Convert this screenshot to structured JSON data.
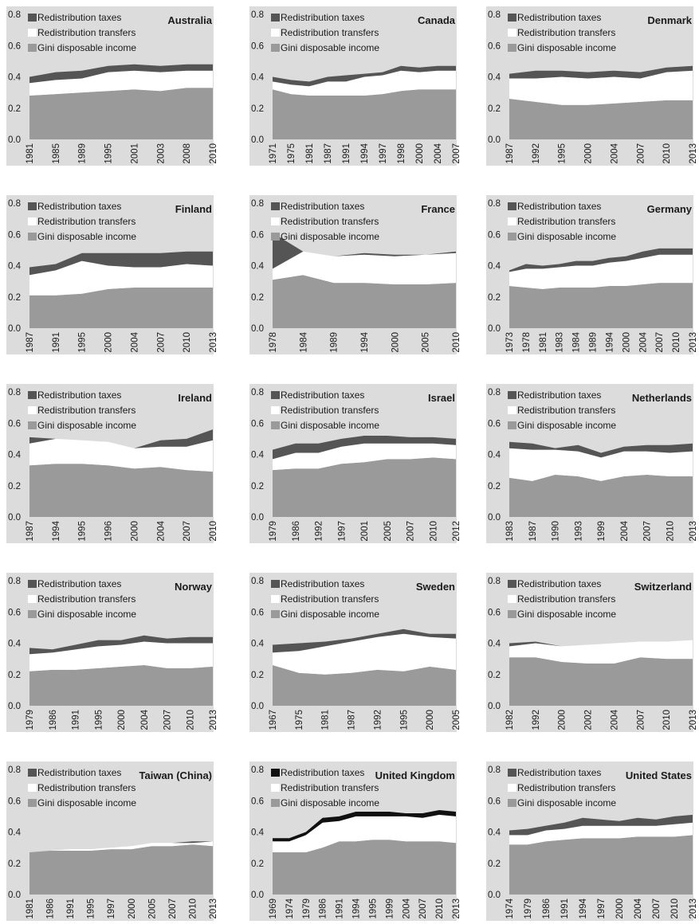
{
  "legend": {
    "taxes": "Redistribution taxes",
    "transfers": "Redistribution transfers",
    "gini": "Gini disposable income"
  },
  "colors": {
    "taxes": "#555555",
    "transfers": "#ffffff",
    "gini": "#9a9a9a",
    "background": "#dcdcdc",
    "uk_taxes": "#111111"
  },
  "y_ticks": [
    "0.0",
    "0.2",
    "0.4",
    "0.6",
    "0.8"
  ],
  "chart_data": [
    {
      "type": "area",
      "title": "Australia",
      "ylim": [
        0,
        0.8
      ],
      "x": [
        "1981",
        "1985",
        "1989",
        "1995",
        "2001",
        "2003",
        "2008",
        "2010"
      ],
      "series": [
        {
          "name": "Gini disposable income",
          "values": [
            0.28,
            0.29,
            0.3,
            0.31,
            0.32,
            0.31,
            0.33,
            0.33
          ]
        },
        {
          "name": "Redistribution transfers",
          "values": [
            0.08,
            0.09,
            0.09,
            0.12,
            0.12,
            0.12,
            0.11,
            0.11
          ]
        },
        {
          "name": "Redistribution taxes",
          "values": [
            0.04,
            0.05,
            0.05,
            0.04,
            0.04,
            0.04,
            0.04,
            0.04
          ]
        }
      ]
    },
    {
      "type": "area",
      "title": "Canada",
      "ylim": [
        0,
        0.8
      ],
      "x": [
        "1971",
        "1975",
        "1981",
        "1987",
        "1991",
        "1994",
        "1997",
        "1998",
        "2000",
        "2004",
        "2007"
      ],
      "series": [
        {
          "name": "Gini disposable income",
          "values": [
            0.32,
            0.29,
            0.28,
            0.28,
            0.28,
            0.28,
            0.29,
            0.31,
            0.32,
            0.32,
            0.32
          ]
        },
        {
          "name": "Redistribution transfers",
          "values": [
            0.05,
            0.06,
            0.06,
            0.09,
            0.09,
            0.12,
            0.12,
            0.13,
            0.11,
            0.12,
            0.12
          ]
        },
        {
          "name": "Redistribution taxes",
          "values": [
            0.03,
            0.03,
            0.03,
            0.03,
            0.04,
            0.02,
            0.02,
            0.03,
            0.03,
            0.03,
            0.03
          ]
        }
      ]
    },
    {
      "type": "area",
      "title": "Denmark",
      "ylim": [
        0,
        0.8
      ],
      "x": [
        "1987",
        "1992",
        "1995",
        "2000",
        "2004",
        "2007",
        "2010",
        "2013"
      ],
      "series": [
        {
          "name": "Gini disposable income",
          "values": [
            0.26,
            0.24,
            0.22,
            0.22,
            0.23,
            0.24,
            0.25,
            0.25
          ]
        },
        {
          "name": "Redistribution transfers",
          "values": [
            0.13,
            0.15,
            0.18,
            0.17,
            0.17,
            0.15,
            0.18,
            0.19
          ]
        },
        {
          "name": "Redistribution taxes",
          "values": [
            0.03,
            0.05,
            0.04,
            0.04,
            0.04,
            0.04,
            0.03,
            0.03
          ]
        }
      ]
    },
    {
      "type": "area",
      "title": "Finland",
      "ylim": [
        0,
        0.8
      ],
      "x": [
        "1987",
        "1991",
        "1995",
        "2000",
        "2004",
        "2007",
        "2010",
        "2013"
      ],
      "series": [
        {
          "name": "Gini disposable income",
          "values": [
            0.21,
            0.21,
            0.22,
            0.25,
            0.26,
            0.26,
            0.26,
            0.26
          ]
        },
        {
          "name": "Redistribution transfers",
          "values": [
            0.13,
            0.16,
            0.21,
            0.15,
            0.13,
            0.13,
            0.15,
            0.14
          ]
        },
        {
          "name": "Redistribution taxes",
          "values": [
            0.05,
            0.04,
            0.05,
            0.08,
            0.09,
            0.09,
            0.08,
            0.09
          ]
        }
      ]
    },
    {
      "type": "area",
      "title": "France",
      "ylim": [
        0,
        0.8
      ],
      "x": [
        "1978",
        "1984",
        "1989",
        "1994",
        "2000",
        "2005",
        "2010"
      ],
      "series": [
        {
          "name": "Gini disposable income",
          "values": [
            0.31,
            0.34,
            0.29,
            0.29,
            0.28,
            0.28,
            0.29
          ]
        },
        {
          "name": "Redistribution transfers",
          "values": [
            0.07,
            0.15,
            0.17,
            0.18,
            0.18,
            0.19,
            0.19
          ]
        },
        {
          "name": "Redistribution taxes",
          "values": [
            0.23,
            0.0,
            0.0,
            0.01,
            0.01,
            0.0,
            0.01
          ]
        }
      ]
    },
    {
      "type": "area",
      "title": "Germany",
      "ylim": [
        0,
        0.8
      ],
      "x": [
        "1973",
        "1978",
        "1981",
        "1983",
        "1984",
        "1989",
        "1994",
        "2000",
        "2004",
        "2007",
        "2010",
        "2013"
      ],
      "series": [
        {
          "name": "Gini disposable income",
          "values": [
            0.27,
            0.26,
            0.25,
            0.26,
            0.26,
            0.26,
            0.27,
            0.27,
            0.28,
            0.29,
            0.29,
            0.29
          ]
        },
        {
          "name": "Redistribution transfers",
          "values": [
            0.09,
            0.12,
            0.13,
            0.13,
            0.14,
            0.14,
            0.15,
            0.16,
            0.17,
            0.18,
            0.18,
            0.18
          ]
        },
        {
          "name": "Redistribution taxes",
          "values": [
            0.01,
            0.03,
            0.02,
            0.02,
            0.03,
            0.03,
            0.03,
            0.03,
            0.04,
            0.04,
            0.04,
            0.04
          ]
        }
      ]
    },
    {
      "type": "area",
      "title": "Ireland",
      "ylim": [
        0,
        0.8
      ],
      "x": [
        "1987",
        "1994",
        "1995",
        "1996",
        "2000",
        "2004",
        "2007",
        "2010"
      ],
      "series": [
        {
          "name": "Gini disposable income",
          "values": [
            0.33,
            0.34,
            0.34,
            0.33,
            0.31,
            0.32,
            0.3,
            0.29
          ]
        },
        {
          "name": "Redistribution transfers",
          "values": [
            0.14,
            0.16,
            0.15,
            0.15,
            0.13,
            0.13,
            0.15,
            0.2
          ]
        },
        {
          "name": "Redistribution taxes",
          "values": [
            0.04,
            0.0,
            0.0,
            0.0,
            0.0,
            0.04,
            0.05,
            0.07
          ]
        }
      ]
    },
    {
      "type": "area",
      "title": "Israel",
      "ylim": [
        0,
        0.8
      ],
      "x": [
        "1979",
        "1986",
        "1992",
        "1997",
        "2001",
        "2005",
        "2007",
        "2010",
        "2012"
      ],
      "series": [
        {
          "name": "Gini disposable income",
          "values": [
            0.3,
            0.31,
            0.31,
            0.34,
            0.35,
            0.37,
            0.37,
            0.38,
            0.37
          ]
        },
        {
          "name": "Redistribution transfers",
          "values": [
            0.07,
            0.1,
            0.1,
            0.11,
            0.12,
            0.1,
            0.1,
            0.09,
            0.09
          ]
        },
        {
          "name": "Redistribution taxes",
          "values": [
            0.06,
            0.06,
            0.06,
            0.05,
            0.05,
            0.05,
            0.04,
            0.04,
            0.04
          ]
        }
      ]
    },
    {
      "type": "area",
      "title": "Netherlands",
      "ylim": [
        0,
        0.8
      ],
      "x": [
        "1983",
        "1987",
        "1990",
        "1993",
        "1999",
        "2004",
        "2007",
        "2010",
        "2013"
      ],
      "series": [
        {
          "name": "Gini disposable income",
          "values": [
            0.25,
            0.23,
            0.27,
            0.26,
            0.23,
            0.26,
            0.27,
            0.26,
            0.26
          ]
        },
        {
          "name": "Redistribution transfers",
          "values": [
            0.19,
            0.2,
            0.16,
            0.16,
            0.15,
            0.16,
            0.15,
            0.15,
            0.16
          ]
        },
        {
          "name": "Redistribution taxes",
          "values": [
            0.04,
            0.04,
            0.01,
            0.04,
            0.03,
            0.03,
            0.04,
            0.05,
            0.05
          ]
        }
      ]
    },
    {
      "type": "area",
      "title": "Norway",
      "ylim": [
        0,
        0.8
      ],
      "x": [
        "1979",
        "1986",
        "1991",
        "1995",
        "2000",
        "2004",
        "2007",
        "2010",
        "2013"
      ],
      "series": [
        {
          "name": "Gini disposable income",
          "values": [
            0.22,
            0.23,
            0.23,
            0.24,
            0.25,
            0.26,
            0.24,
            0.24,
            0.25
          ]
        },
        {
          "name": "Redistribution transfers",
          "values": [
            0.11,
            0.11,
            0.13,
            0.14,
            0.14,
            0.15,
            0.16,
            0.16,
            0.15
          ]
        },
        {
          "name": "Redistribution taxes",
          "values": [
            0.04,
            0.02,
            0.03,
            0.04,
            0.03,
            0.04,
            0.03,
            0.04,
            0.04
          ]
        }
      ]
    },
    {
      "type": "area",
      "title": "Sweden",
      "ylim": [
        0,
        0.8
      ],
      "x": [
        "1967",
        "1975",
        "1981",
        "1987",
        "1992",
        "1995",
        "2000",
        "2005"
      ],
      "series": [
        {
          "name": "Gini disposable income",
          "values": [
            0.26,
            0.21,
            0.2,
            0.21,
            0.23,
            0.22,
            0.25,
            0.23
          ]
        },
        {
          "name": "Redistribution transfers",
          "values": [
            0.08,
            0.14,
            0.18,
            0.2,
            0.21,
            0.24,
            0.19,
            0.2
          ]
        },
        {
          "name": "Redistribution taxes",
          "values": [
            0.05,
            0.05,
            0.03,
            0.02,
            0.02,
            0.03,
            0.02,
            0.03
          ]
        }
      ]
    },
    {
      "type": "area",
      "title": "Switzerland",
      "ylim": [
        0,
        0.8
      ],
      "x": [
        "1982",
        "1992",
        "2000",
        "2002",
        "2004",
        "2007",
        "2010",
        "2013"
      ],
      "series": [
        {
          "name": "Gini disposable income",
          "values": [
            0.31,
            0.31,
            0.28,
            0.27,
            0.27,
            0.31,
            0.3,
            0.3
          ]
        },
        {
          "name": "Redistribution transfers",
          "values": [
            0.07,
            0.09,
            0.1,
            0.12,
            0.13,
            0.1,
            0.11,
            0.12
          ]
        },
        {
          "name": "Redistribution taxes",
          "values": [
            0.02,
            0.01,
            0.0,
            0.0,
            0.0,
            0.0,
            0.0,
            0.0
          ]
        }
      ]
    },
    {
      "type": "area",
      "title": "Taiwan (China)",
      "ylim": [
        0,
        0.8
      ],
      "x": [
        "1981",
        "1986",
        "1991",
        "1995",
        "1997",
        "2000",
        "2005",
        "2007",
        "2010",
        "2013"
      ],
      "series": [
        {
          "name": "Gini disposable income",
          "values": [
            0.27,
            0.28,
            0.28,
            0.28,
            0.29,
            0.29,
            0.31,
            0.31,
            0.32,
            0.31
          ]
        },
        {
          "name": "Redistribution transfers",
          "values": [
            0.0,
            0.0,
            0.01,
            0.01,
            0.01,
            0.02,
            0.02,
            0.02,
            0.01,
            0.03
          ]
        },
        {
          "name": "Redistribution taxes",
          "values": [
            0.0,
            0.0,
            0.0,
            0.0,
            0.0,
            0.0,
            0.0,
            0.0,
            0.01,
            0.0
          ]
        }
      ]
    },
    {
      "type": "area",
      "title": "United Kingdom",
      "ylim": [
        0,
        0.8
      ],
      "x": [
        "1969",
        "1974",
        "1979",
        "1986",
        "1991",
        "1994",
        "1995",
        "1999",
        "2004",
        "2007",
        "2010",
        "2013"
      ],
      "series": [
        {
          "name": "Gini disposable income",
          "values": [
            0.27,
            0.27,
            0.27,
            0.3,
            0.34,
            0.34,
            0.35,
            0.35,
            0.34,
            0.34,
            0.34,
            0.33
          ]
        },
        {
          "name": "Redistribution transfers",
          "values": [
            0.07,
            0.07,
            0.11,
            0.16,
            0.13,
            0.16,
            0.15,
            0.15,
            0.16,
            0.15,
            0.17,
            0.17
          ]
        },
        {
          "name": "Redistribution taxes",
          "values": [
            0.02,
            0.02,
            0.02,
            0.03,
            0.03,
            0.03,
            0.03,
            0.03,
            0.02,
            0.03,
            0.03,
            0.03
          ]
        }
      ]
    },
    {
      "type": "area",
      "title": "United States",
      "ylim": [
        0,
        0.8
      ],
      "x": [
        "1974",
        "1979",
        "1986",
        "1991",
        "1994",
        "1997",
        "2000",
        "2004",
        "2007",
        "2010",
        "2013"
      ],
      "series": [
        {
          "name": "Gini disposable income",
          "values": [
            0.32,
            0.32,
            0.34,
            0.35,
            0.36,
            0.36,
            0.36,
            0.37,
            0.37,
            0.37,
            0.38
          ]
        },
        {
          "name": "Redistribution transfers",
          "values": [
            0.06,
            0.06,
            0.07,
            0.07,
            0.08,
            0.08,
            0.08,
            0.07,
            0.07,
            0.08,
            0.08
          ]
        },
        {
          "name": "Redistribution taxes",
          "values": [
            0.03,
            0.04,
            0.03,
            0.04,
            0.05,
            0.04,
            0.03,
            0.05,
            0.04,
            0.05,
            0.05
          ]
        }
      ]
    }
  ]
}
